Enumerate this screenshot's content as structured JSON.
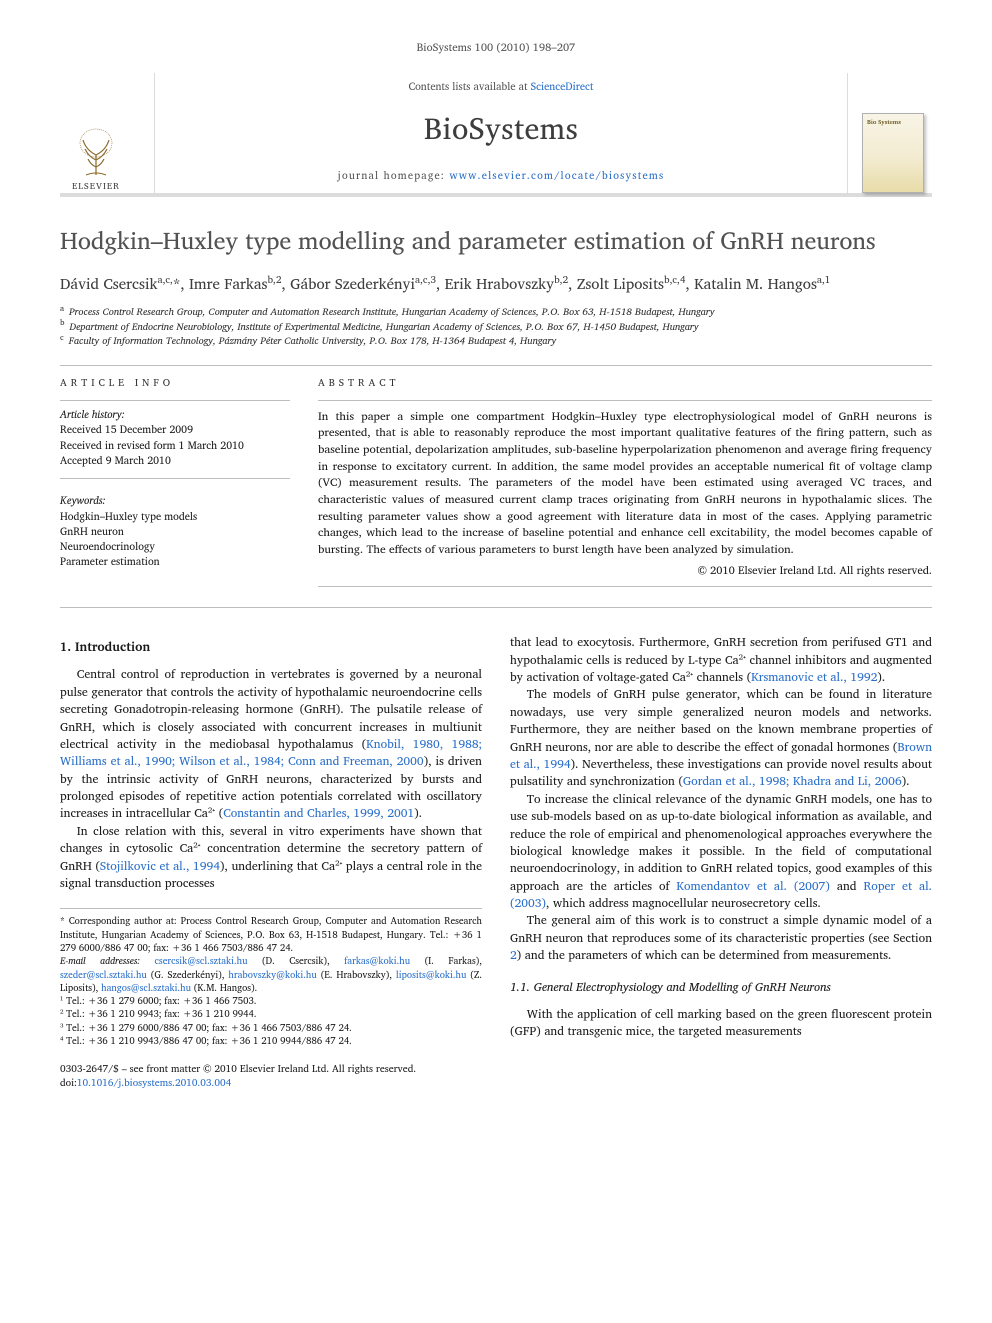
{
  "running_head": "BioSystems 100 (2010) 198–207",
  "masthead": {
    "contents_prefix": "Contents lists available at ",
    "contents_link": "ScienceDirect",
    "journal": "BioSystems",
    "homepage_prefix": "journal homepage: ",
    "homepage_url": "www.elsevier.com/locate/biosystems",
    "publisher_label": "ELSEVIER",
    "cover_label": "Bio Systems"
  },
  "title": "Hodgkin–Huxley type modelling and parameter estimation of GnRH neurons",
  "authors_html": "Dávid Csercsik<sup>a,c,</sup>*, Imre Farkas<sup>b,2</sup>, Gábor Szederkényi<sup>a,c,3</sup>, Erik Hrabovszky<sup>b,2</sup>, Zsolt Liposits<sup>b,c,4</sup>, Katalin M. Hangos<sup>a,1</sup>",
  "affiliations": [
    "a Process Control Research Group, Computer and Automation Research Institute, Hungarian Academy of Sciences, P.O. Box 63, H-1518 Budapest, Hungary",
    "b Department of Endocrine Neurobiology, Institute of Experimental Medicine, Hungarian Academy of Sciences, P.O. Box 67, H-1450 Budapest, Hungary",
    "c Faculty of Information Technology, Pázmány Péter Catholic University, P.O. Box 178, H-1364 Budapest 4, Hungary"
  ],
  "info": {
    "heading": "ARTICLE INFO",
    "history_label": "Article history:",
    "history": [
      "Received 15 December 2009",
      "Received in revised form 1 March 2010",
      "Accepted 9 March 2010"
    ],
    "keywords_label": "Keywords:",
    "keywords": [
      "Hodgkin–Huxley type models",
      "GnRH neuron",
      "Neuroendocrinology",
      "Parameter estimation"
    ]
  },
  "abstract": {
    "heading": "ABSTRACT",
    "text": "In this paper a simple one compartment Hodgkin–Huxley type electrophysiological model of GnRH neurons is presented, that is able to reasonably reproduce the most important qualitative features of the firing pattern, such as baseline potential, depolarization amplitudes, sub-baseline hyperpolarization phenomenon and average firing frequency in response to excitatory current. In addition, the same model provides an acceptable numerical fit of voltage clamp (VC) measurement results. The parameters of the model have been estimated using averaged VC traces, and characteristic values of measured current clamp traces originating from GnRH neurons in hypothalamic slices. The resulting parameter values show a good agreement with literature data in most of the cases. Applying parametric changes, which lead to the increase of baseline potential and enhance cell excitability, the model becomes capable of bursting. The effects of various parameters to burst length have been analyzed by simulation.",
    "copyright": "© 2010 Elsevier Ireland Ltd. All rights reserved."
  },
  "body": {
    "intro_heading": "1. Introduction",
    "p1a": "Central control of reproduction in vertebrates is governed by a neuronal pulse generator that controls the activity of hypothalamic neuroendocrine cells secreting Gonadotropin-releasing hormone (GnRH). The pulsatile release of GnRH, which is closely associated with concurrent increases in multiunit electrical activity in the mediobasal hypothalamus (",
    "p1_link1": "Knobil, 1980, 1988; Williams et al., 1990; Wilson et al., 1984; Conn and Freeman, 2000",
    "p1b": "), is driven by the intrinsic activity of GnRH neurons, characterized by bursts and prolonged episodes of repetitive action potentials correlated with oscillatory increases in intracellular Ca²⁺ (",
    "p1_link2": "Constantin and Charles, 1999, 2001",
    "p1c": ").",
    "p2a": "In close relation with this, several in vitro experiments have shown that changes in cytosolic Ca²⁺ concentration determine the secretory pattern of GnRH (",
    "p2_link1": "Stojilkovic et al., 1994",
    "p2b": "), underlining that Ca²⁺ plays a central role in the signal transduction processes",
    "p3a": "that lead to exocytosis. Furthermore, GnRH secretion from perifused GT1 and hypothalamic cells is reduced by L-type Ca²⁺ channel inhibitors and augmented by activation of voltage-gated Ca²⁺ channels (",
    "p3_link1": "Krsmanovic et al., 1992",
    "p3b": ").",
    "p4a": "The models of GnRH pulse generator, which can be found in literature nowadays, use very simple generalized neuron models and networks. Furthermore, they are neither based on the known membrane properties of GnRH neurons, nor are able to describe the effect of gonadal hormones (",
    "p4_link1": "Brown et al., 1994",
    "p4b": "). Nevertheless, these investigations can provide novel results about pulsatility and synchronization (",
    "p4_link2": "Gordan et al., 1998; Khadra and Li, 2006",
    "p4c": ").",
    "p5a": "To increase the clinical relevance of the dynamic GnRH models, one has to use sub-models based on as up-to-date biological information as available, and reduce the role of empirical and phenomenological approaches everywhere the biological knowledge makes it possible. In the field of computational neuroendocrinology, in addition to GnRH related topics, good examples of this approach are the articles of ",
    "p5_link1": "Komendantov et al. (2007)",
    "p5b": " and ",
    "p5_link2": "Roper et al. (2003)",
    "p5c": ", which address magnocellular neurosecretory cells.",
    "p6a": "The general aim of this work is to construct a simple dynamic model of a GnRH neuron that reproduces some of its characteristic properties (see Section ",
    "p6_link1": "2",
    "p6b": ") and the parameters of which can be determined from measurements.",
    "sub_heading": "1.1. General Electrophysiology and Modelling of GnRH Neurons",
    "p7": "With the application of cell marking based on the green fluorescent protein (GFP) and transgenic mice, the targeted measurements"
  },
  "footnotes": {
    "corr": "* Corresponding author at: Process Control Research Group, Computer and Automation Research Institute, Hungarian Academy of Sciences, P.O. Box 63, H-1518 Budapest, Hungary. Tel.: +36 1 279 6000/886 47 00; fax: +36 1 466 7503/886 47 24.",
    "emails_label": "E-mail addresses: ",
    "emails": [
      {
        "addr": "csercsik@scl.sztaki.hu",
        "who": "(D. Csercsik)"
      },
      {
        "addr": "farkas@koki.hu",
        "who": "(I. Farkas)"
      },
      {
        "addr": "szeder@scl.sztaki.hu",
        "who": "(G. Szederkényi)"
      },
      {
        "addr": "hrabovszky@koki.hu",
        "who": "(E. Hrabovszky)"
      },
      {
        "addr": "liposits@koki.hu",
        "who": "(Z. Liposits)"
      },
      {
        "addr": "hangos@scl.sztaki.hu",
        "who": "(K.M. Hangos)."
      }
    ],
    "tels": [
      "¹ Tel.: +36 1 279 6000; fax: +36 1 466 7503.",
      "² Tel.: +36 1 210 9943; fax: +36 1 210 9944.",
      "³ Tel.: +36 1 279 6000/886 47 00; fax: +36 1 466 7503/886 47 24.",
      "⁴ Tel.: +36 1 210 9943/886 47 00; fax: +36 1 210 9944/886 47 24."
    ]
  },
  "footer": {
    "line1": "0303-2647/$ – see front matter © 2010 Elsevier Ireland Ltd. All rights reserved.",
    "doi_label": "doi:",
    "doi": "10.1016/j.biosystems.2010.03.004"
  },
  "colors": {
    "link": "#2a6fc9",
    "rule": "#bdbdbd",
    "text_muted": "#555555"
  }
}
